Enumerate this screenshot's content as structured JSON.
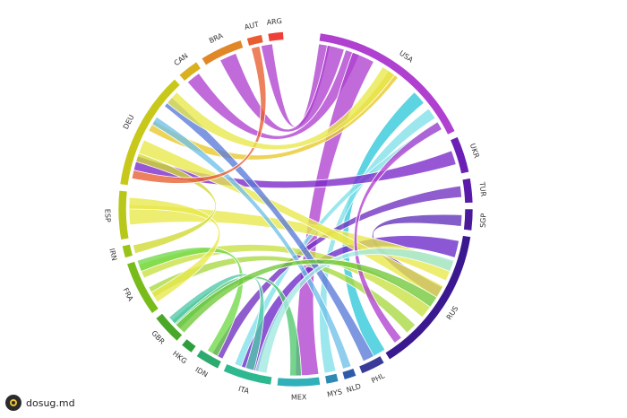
{
  "diagram": {
    "type": "chord",
    "nodes": [
      {
        "id": "USA",
        "color": "#b040d0",
        "from": 8,
        "to": 64
      },
      {
        "id": "UKR",
        "color": "#6a1fb5",
        "from": 66,
        "to": 78
      },
      {
        "id": "TUR",
        "color": "#5a1aa8",
        "from": 80,
        "to": 88
      },
      {
        "id": "SGP",
        "color": "#4a1a9a",
        "from": 90,
        "to": 97
      },
      {
        "id": "RUS",
        "color": "#3a1890",
        "from": 99,
        "to": 148
      },
      {
        "id": "PHL",
        "color": "#3a3a98",
        "from": 150,
        "to": 158
      },
      {
        "id": "NLD",
        "color": "#2f5aa8",
        "from": 160,
        "to": 164
      },
      {
        "id": "MYS",
        "color": "#2e8ab0",
        "from": 166,
        "to": 170
      },
      {
        "id": "MEX",
        "color": "#30b0b8",
        "from": 172,
        "to": 186
      },
      {
        "id": "ITA",
        "color": "#2db890",
        "from": 188,
        "to": 204
      },
      {
        "id": "IDN",
        "color": "#2daa70",
        "from": 206,
        "to": 214
      },
      {
        "id": "HKG",
        "color": "#2e9e3c",
        "from": 216,
        "to": 220
      },
      {
        "id": "GBR",
        "color": "#4aa828",
        "from": 222,
        "to": 232
      },
      {
        "id": "FRA",
        "color": "#78bc1c",
        "from": 234,
        "to": 252
      },
      {
        "id": "IRN",
        "color": "#98c418",
        "from": 254,
        "to": 258
      },
      {
        "id": "ESP",
        "color": "#b8c818",
        "from": 260,
        "to": 276
      },
      {
        "id": "DEU",
        "color": "#c8c81a",
        "from": 278,
        "to": 317
      },
      {
        "id": "CAN",
        "color": "#d8b020",
        "from": 319,
        "to": 326
      },
      {
        "id": "BRA",
        "color": "#e08828",
        "from": 328,
        "to": 342
      },
      {
        "id": "AUT",
        "color": "#e85c30",
        "from": 344,
        "to": 349
      },
      {
        "id": "ARG",
        "color": "#ee4038",
        "from": 351,
        "to": 356
      }
    ],
    "chords": [
      {
        "a": 10,
        "b": 350,
        "w": 4,
        "color": "#b040d0"
      },
      {
        "a": 14,
        "b": 336,
        "w": 6,
        "color": "#b040d0"
      },
      {
        "a": 20,
        "b": 322,
        "w": 5,
        "color": "#b040d0"
      },
      {
        "a": 24,
        "b": 176,
        "w": 8,
        "color": "#b040d0"
      },
      {
        "a": 36,
        "b": 300,
        "w": 4,
        "color": "#e8c828"
      },
      {
        "a": 48,
        "b": 150,
        "w": 5,
        "color": "#30c8d8"
      },
      {
        "a": 55,
        "b": 168,
        "w": 4,
        "color": "#80e0e8"
      },
      {
        "a": 60,
        "b": 200,
        "w": 3,
        "color": "#80e0e8"
      },
      {
        "a": 72,
        "b": 286,
        "w": 5,
        "color": "#7a28c8"
      },
      {
        "a": 84,
        "b": 208,
        "w": 4,
        "color": "#7030c0"
      },
      {
        "a": 94,
        "b": 120,
        "w": 4,
        "color": "#6030b8"
      },
      {
        "a": 104,
        "b": 196,
        "w": 6,
        "color": "#6a28c8"
      },
      {
        "a": 112,
        "b": 268,
        "w": 7,
        "color": "#e8e84a"
      },
      {
        "a": 120,
        "b": 292,
        "w": 5,
        "color": "#e8e84a"
      },
      {
        "a": 128,
        "b": 248,
        "w": 5,
        "color": "#c8e040"
      },
      {
        "a": 136,
        "b": 240,
        "w": 4,
        "color": "#a8d840"
      },
      {
        "a": 142,
        "b": 60,
        "w": 3,
        "color": "#b040d0"
      },
      {
        "a": 154,
        "b": 310,
        "w": 4,
        "color": "#5a7ad8"
      },
      {
        "a": 162,
        "b": 302,
        "w": 3,
        "color": "#70c0e8"
      },
      {
        "a": 180,
        "b": 226,
        "w": 4,
        "color": "#50c870"
      },
      {
        "a": 192,
        "b": 110,
        "w": 4,
        "color": "#a0e8e0"
      },
      {
        "a": 210,
        "b": 250,
        "w": 4,
        "color": "#70d848"
      },
      {
        "a": 228,
        "b": 196,
        "w": 3,
        "color": "#50c8a8"
      },
      {
        "a": 238,
        "b": 272,
        "w": 4,
        "color": "#e8e84a"
      },
      {
        "a": 256,
        "b": 288,
        "w": 3,
        "color": "#d0d830"
      },
      {
        "a": 282,
        "b": 346,
        "w": 3,
        "color": "#e85c30"
      },
      {
        "a": 312,
        "b": 34,
        "w": 5,
        "color": "#e8e84a"
      },
      {
        "a": 224,
        "b": 124,
        "w": 4,
        "color": "#70c838"
      }
    ]
  },
  "watermark": {
    "text": "dosug.md"
  }
}
